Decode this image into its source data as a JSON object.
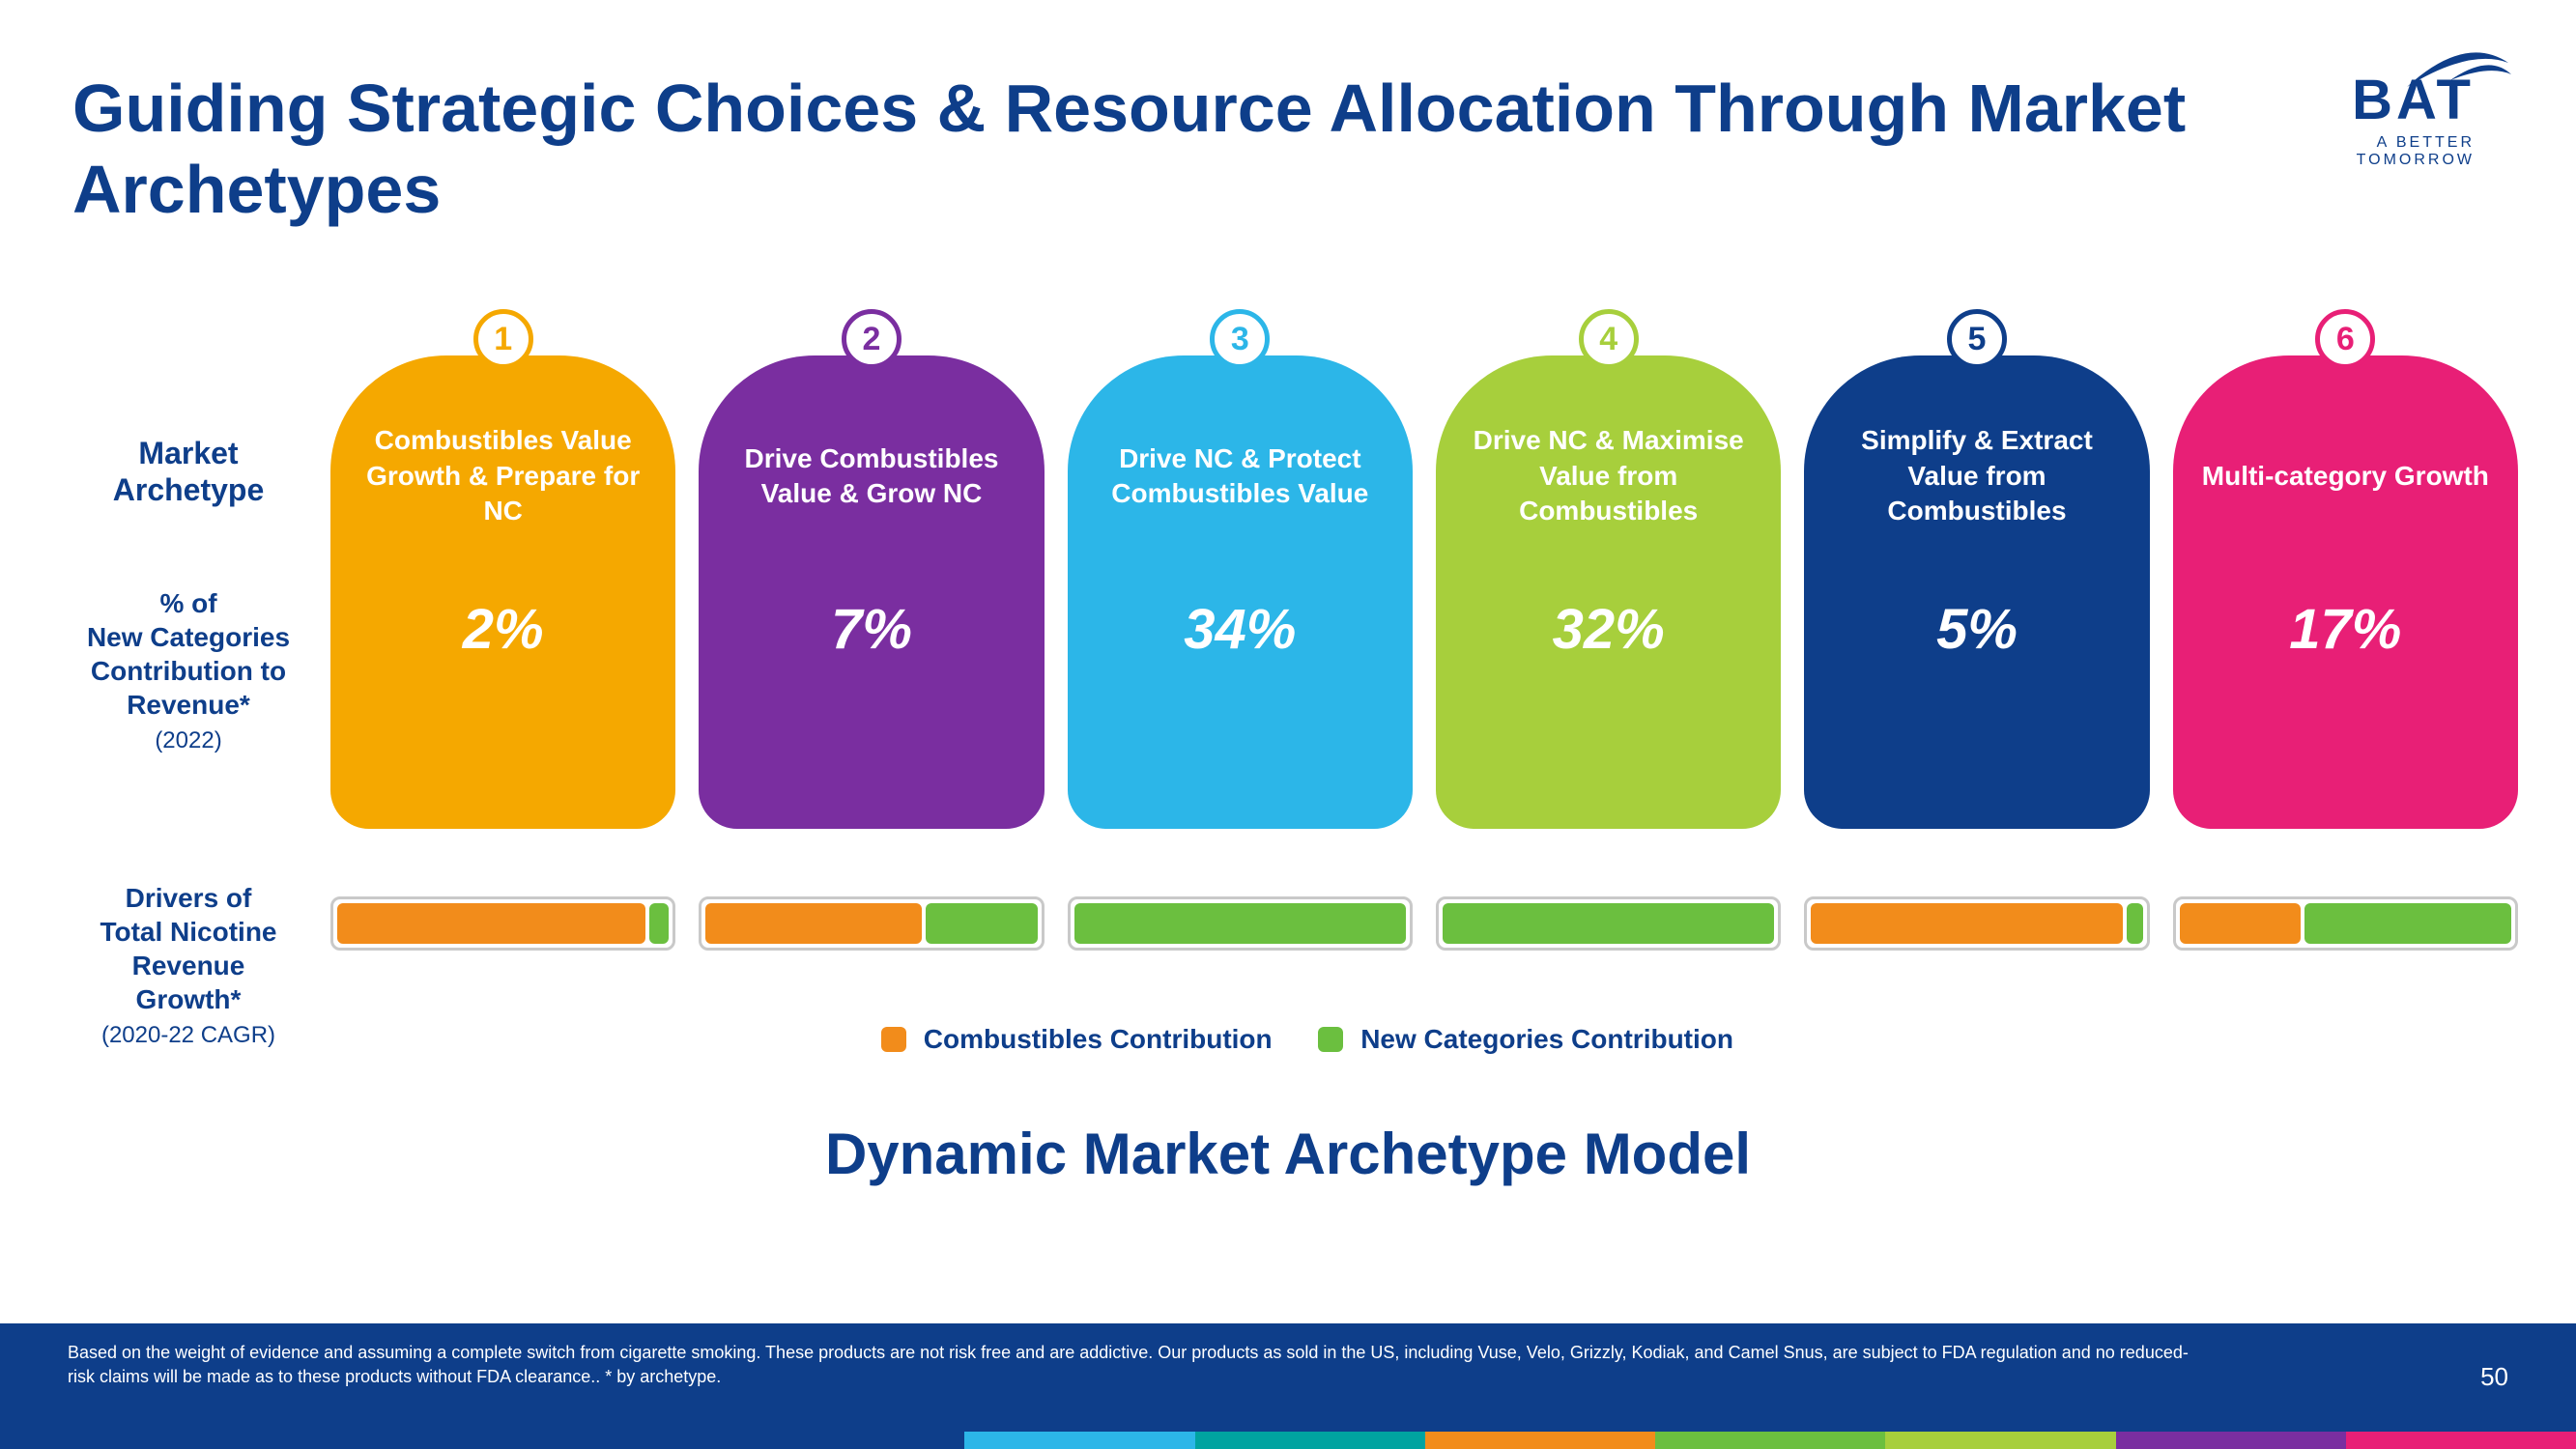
{
  "header": {
    "title": "Guiding Strategic Choices & Resource Allocation Through Market Archetypes",
    "logo_text": "BAT",
    "logo_tagline": "A BETTER TOMORROW"
  },
  "row_labels": {
    "archetype_l1": "Market",
    "archetype_l2": "Archetype",
    "percent_l1": "% of",
    "percent_l2": "New Categories",
    "percent_l3": "Contribution to",
    "percent_l4": "Revenue*",
    "percent_sub": "(2022)",
    "drivers_l1": "Drivers of",
    "drivers_l2": "Total Nicotine",
    "drivers_l3": "Revenue",
    "drivers_l4": "Growth*",
    "drivers_sub": "(2020-22 CAGR)"
  },
  "archetypes": [
    {
      "num": "1",
      "color": "#f5a800",
      "label": "Combustibles Value Growth & Prepare for NC",
      "pct": "2%",
      "bar": [
        {
          "w": 94,
          "c": "#f28c1b"
        },
        {
          "w": 6,
          "c": "#6bbf3f"
        }
      ]
    },
    {
      "num": "2",
      "color": "#7a2ea0",
      "label": "Drive Combustibles Value & Grow NC",
      "pct": "7%",
      "bar": [
        {
          "w": 66,
          "c": "#f28c1b"
        },
        {
          "w": 34,
          "c": "#6bbf3f"
        }
      ]
    },
    {
      "num": "3",
      "color": "#2cb6e8",
      "label": "Drive NC & Protect Combustibles Value",
      "pct": "34%",
      "bar": [
        {
          "w": 0,
          "c": "#f28c1b"
        },
        {
          "w": 100,
          "c": "#6bbf3f"
        }
      ]
    },
    {
      "num": "4",
      "color": "#a7cf3c",
      "label": "Drive NC & Maximise Value from Combustibles",
      "pct": "32%",
      "bar": [
        {
          "w": 0,
          "c": "#f28c1b"
        },
        {
          "w": 100,
          "c": "#6bbf3f"
        }
      ]
    },
    {
      "num": "5",
      "color": "#0e3e8a",
      "label": "Simplify & Extract Value from Combustibles",
      "pct": "5%",
      "bar": [
        {
          "w": 95,
          "c": "#f28c1b"
        },
        {
          "w": 5,
          "c": "#6bbf3f"
        }
      ]
    },
    {
      "num": "6",
      "color": "#e81f76",
      "label": "Multi-category Growth",
      "pct": "17%",
      "bar": [
        {
          "w": 37,
          "c": "#f28c1b"
        },
        {
          "w": 63,
          "c": "#6bbf3f"
        }
      ]
    }
  ],
  "legend": {
    "item1_color": "#f28c1b",
    "item1_label": "Combustibles Contribution",
    "item2_color": "#6bbf3f",
    "item2_label": "New Categories Contribution"
  },
  "subtitle": "Dynamic Market Archetype Model",
  "footer": {
    "text": "Based on the weight of evidence and assuming a complete switch from cigarette smoking. These products are not risk free and are addictive. Our products as sold in the US, including Vuse, Velo, Grizzly, Kodiak, and Camel Snus, are subject to FDA regulation and no reduced-risk claims will be made as to these products without FDA clearance.. * by archetype.",
    "page": "50",
    "stripe_colors": [
      "#0e3e8a",
      "#2cb6e8",
      "#00a3a0",
      "#f28c1b",
      "#6bbf3f",
      "#a7cf3c",
      "#7a2ea0",
      "#e81f76"
    ]
  }
}
